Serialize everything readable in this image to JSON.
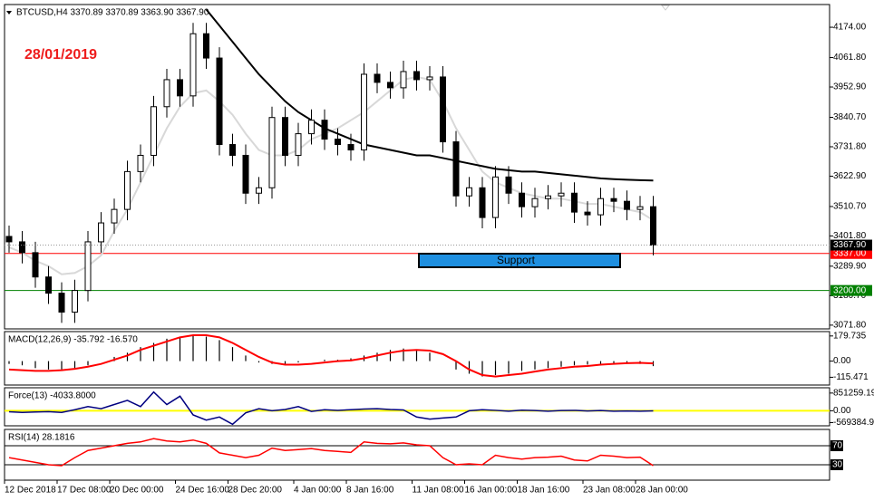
{
  "chart_data": [
    {
      "type": "candlestick",
      "title": "BTCUSD,H4  3370.89 3370.89 3363.90 3367.90",
      "annotation": "28/01/2019",
      "support_label": "Support",
      "categories": [
        "12 Dec 2018",
        null,
        null,
        null,
        "17 Dec 08:00",
        null,
        null,
        null,
        "20 Dec 00:00",
        null,
        null,
        null,
        null,
        "24 Dec 16:00",
        null,
        null,
        null,
        "28 Dec 20:00",
        null,
        null,
        null,
        null,
        "4 Jan 00:00",
        null,
        null,
        null,
        "8 Jan 16:00",
        null,
        null,
        null,
        null,
        "11 Jan 08:00",
        null,
        null,
        null,
        "16 Jan 00:00",
        null,
        null,
        null,
        "18 Jan 16:00",
        null,
        null,
        null,
        null,
        "23 Jan 08:00",
        null,
        null,
        null,
        "28 Jan 00:00",
        null
      ],
      "open": [
        3400,
        3380,
        3340,
        3250,
        3190,
        3120,
        3200,
        3380,
        3450,
        3500,
        3640,
        3700,
        3880,
        3980,
        3920,
        4150,
        4060,
        3740,
        3700,
        3560,
        3580,
        3840,
        3700,
        3780,
        3830,
        3760,
        3740,
        3720,
        4000,
        3970,
        3950,
        4010,
        3980,
        3990,
        3750,
        3550,
        3580,
        3470,
        3620,
        3560,
        3510,
        3540,
        3550,
        3560,
        3490,
        3480,
        3540,
        3530,
        3500,
        3510
      ],
      "high": [
        3440,
        3420,
        3380,
        3290,
        3230,
        3240,
        3420,
        3490,
        3540,
        3680,
        3740,
        3920,
        4020,
        4020,
        4190,
        4190,
        4100,
        3780,
        3740,
        3620,
        3880,
        3880,
        3820,
        3870,
        3870,
        3800,
        3780,
        4040,
        4040,
        4010,
        4050,
        4050,
        4030,
        4030,
        3790,
        3620,
        3620,
        3660,
        3660,
        3600,
        3580,
        3590,
        3600,
        3600,
        3530,
        3580,
        3580,
        3570,
        3550,
        3550
      ],
      "low": [
        3340,
        3300,
        3210,
        3150,
        3080,
        3080,
        3160,
        3340,
        3410,
        3460,
        3600,
        3660,
        3840,
        3880,
        3880,
        4020,
        3700,
        3660,
        3520,
        3520,
        3540,
        3660,
        3660,
        3740,
        3720,
        3700,
        3680,
        3680,
        3930,
        3910,
        3910,
        3940,
        3940,
        3710,
        3510,
        3510,
        3430,
        3430,
        3520,
        3470,
        3470,
        3500,
        3510,
        3450,
        3440,
        3440,
        3490,
        3460,
        3460,
        3330
      ],
      "close": [
        3380,
        3340,
        3250,
        3190,
        3120,
        3200,
        3380,
        3450,
        3500,
        3640,
        3700,
        3880,
        3980,
        3920,
        4150,
        4060,
        3740,
        3700,
        3560,
        3580,
        3840,
        3700,
        3780,
        3830,
        3760,
        3740,
        3720,
        4000,
        3970,
        3950,
        4010,
        3980,
        3990,
        3750,
        3550,
        3580,
        3470,
        3620,
        3560,
        3510,
        3540,
        3550,
        3560,
        3490,
        3480,
        3540,
        3530,
        3500,
        3510,
        3367.9
      ],
      "overlays": [
        {
          "color": "#d8d8d8",
          "values": [
            3360,
            3340,
            3310,
            3290,
            3260,
            3265,
            3290,
            3330,
            3420,
            3500,
            3600,
            3700,
            3800,
            3880,
            3930,
            3940,
            3900,
            3850,
            3780,
            3720,
            3700,
            3700,
            3720,
            3760,
            3780,
            3800,
            3830,
            3860,
            3900,
            3940,
            3980,
            3990,
            3980,
            3900,
            3800,
            3720,
            3640,
            3600,
            3580,
            3560,
            3550,
            3540,
            3540,
            3530,
            3520,
            3520,
            3510,
            3500,
            3490,
            3460
          ]
        },
        {
          "color": "#000000",
          "values": [
            null,
            null,
            null,
            null,
            null,
            null,
            null,
            null,
            null,
            null,
            null,
            null,
            null,
            null,
            null,
            4240,
            4180,
            4120,
            4060,
            4000,
            3950,
            3900,
            3860,
            3830,
            3800,
            3780,
            3760,
            3740,
            3730,
            3720,
            3710,
            3700,
            3700,
            3690,
            3680,
            3670,
            3660,
            3650,
            3645,
            3640,
            3640,
            3635,
            3630,
            3625,
            3620,
            3615,
            3612,
            3610,
            3608,
            3607
          ]
        }
      ],
      "levels": [
        {
          "value": 3337,
          "label": "3337.00",
          "color": "#ff0000"
        },
        {
          "value": 3200,
          "label": "3200.00",
          "color": "#008000"
        }
      ],
      "last_price": {
        "value": 3367.9,
        "label": "3367.90"
      },
      "ylim": [
        3058,
        4258
      ],
      "yticks": [
        {
          "value": 4174,
          "label": "4174.00"
        },
        {
          "value": 4061.8,
          "label": "4061.80"
        },
        {
          "value": 3952.9,
          "label": "3952.90"
        },
        {
          "value": 3840.7,
          "label": "3840.70"
        },
        {
          "value": 3731.8,
          "label": "3731.80"
        },
        {
          "value": 3622.9,
          "label": "3622.90"
        },
        {
          "value": 3510.7,
          "label": "3510.70"
        },
        {
          "value": 3401.8,
          "label": "3401.80"
        },
        {
          "value": 3289.9,
          "label": "3289.90"
        },
        {
          "value": 3180.7,
          "label": "3180.70"
        },
        {
          "value": 3071.8,
          "label": "3071.80"
        }
      ]
    },
    {
      "type": "macd",
      "title": "MACD(12,26,9) -35.792 -16.570",
      "color": "#000000",
      "values": [
        -20,
        -30,
        -50,
        -60,
        -60,
        -50,
        -30,
        0,
        30,
        60,
        100,
        130,
        160,
        175,
        180,
        175,
        150,
        100,
        40,
        -10,
        -20,
        -20,
        -10,
        0,
        10,
        10,
        20,
        40,
        60,
        80,
        90,
        80,
        60,
        0,
        -60,
        -90,
        -110,
        -100,
        -90,
        -70,
        -60,
        -50,
        -40,
        -30,
        -25,
        -20,
        -15,
        -15,
        -20,
        -35.792
      ],
      "signal": {
        "color": "#ff0000",
        "values": [
          -60,
          -65,
          -70,
          -70,
          -65,
          -55,
          -40,
          -20,
          10,
          40,
          80,
          110,
          140,
          170,
          185,
          185,
          170,
          130,
          80,
          30,
          -10,
          -25,
          -25,
          -20,
          -10,
          0,
          5,
          20,
          40,
          60,
          75,
          80,
          75,
          50,
          0,
          -60,
          -100,
          -110,
          -100,
          -90,
          -75,
          -60,
          -50,
          -40,
          -35,
          -25,
          -20,
          -15,
          -12,
          -16.57
        ]
      },
      "ylim": [
        -171,
        211
      ],
      "yticks": [
        179.735,
        {
          "value": 0,
          "label": "0.00"
        },
        -115.471
      ]
    },
    {
      "type": "force",
      "title": "Force(13) -4033.8000",
      "color": "#000080",
      "zero_color": "#ffff00",
      "values": [
        -50000,
        -80000,
        -60000,
        -40000,
        -80000,
        50000,
        200000,
        100000,
        300000,
        500000,
        200000,
        900000,
        300000,
        700000,
        -200000,
        -450000,
        -300000,
        -650000,
        -100000,
        100000,
        0,
        60000,
        200000,
        -30000,
        50000,
        20000,
        50000,
        80000,
        100000,
        60000,
        40000,
        -300000,
        -400000,
        -350000,
        -300000,
        0,
        50000,
        20000,
        -20000,
        30000,
        10000,
        -20000,
        10000,
        20000,
        -10000,
        10000,
        -20000,
        -10000,
        -20000,
        -4033.8
      ],
      "ylim": [
        -723000,
        1106000
      ],
      "yticks": [
        851259.19,
        {
          "value": 0,
          "label": "0.00"
        },
        -569384.9
      ]
    },
    {
      "type": "rsi",
      "title": "RSI(14) 28.1816",
      "color": "#ff0000",
      "values": [
        45,
        40,
        35,
        30,
        28,
        45,
        60,
        65,
        70,
        75,
        78,
        85,
        80,
        78,
        82,
        75,
        55,
        50,
        45,
        50,
        65,
        60,
        62,
        64,
        60,
        58,
        56,
        78,
        75,
        74,
        76,
        72,
        70,
        45,
        30,
        32,
        30,
        50,
        45,
        42,
        45,
        46,
        48,
        40,
        38,
        50,
        48,
        45,
        46,
        28.1816
      ],
      "ylim": [
        -2.4,
        104.3
      ],
      "yticks": [
        70,
        30
      ],
      "tick_lines": true
    }
  ]
}
